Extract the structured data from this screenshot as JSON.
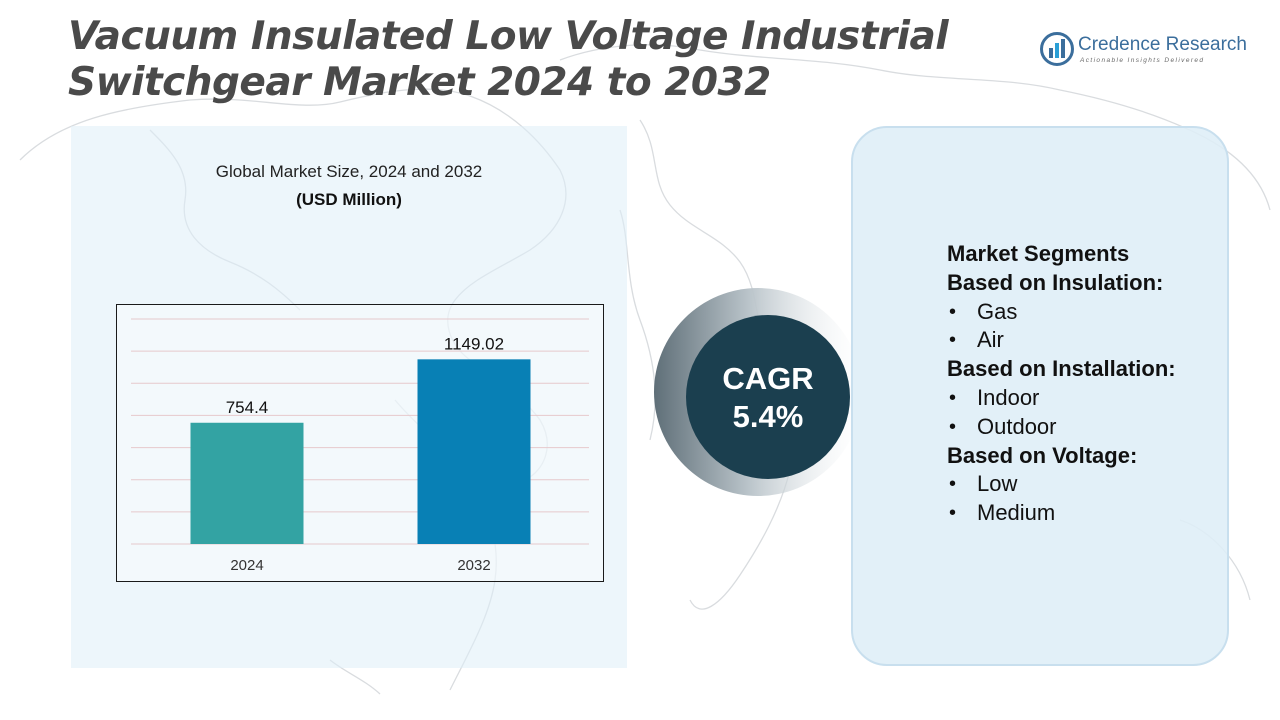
{
  "title": "Vacuum Insulated Low Voltage Industrial Switchgear Market 2024 to 2032",
  "brand": {
    "name": "Credence Research",
    "tagline": "Actionable Insights Delivered",
    "logo_icon": "bar-chart-logo-icon",
    "color": "#3b6e9c"
  },
  "chart_data": {
    "type": "bar",
    "title": "Global Market Size, 2024 and 2032",
    "subtitle": "(USD Million)",
    "categories": [
      "2024",
      "2032"
    ],
    "values": [
      754.4,
      1149.02
    ],
    "value_labels": [
      "754.4",
      "1149.02"
    ],
    "bar_colors": [
      "#33a3a3",
      "#0880b5"
    ],
    "ylim": [
      0,
      1400
    ],
    "grid": true,
    "xlabel": "",
    "ylabel": ""
  },
  "cagr": {
    "label": "CAGR",
    "value": "5.4%",
    "circle_color": "#1b3f4f"
  },
  "segments": [
    {
      "heading": "Market Segments",
      "items": []
    },
    {
      "heading": "Based on Insulation:",
      "items": [
        "Gas",
        "Air"
      ]
    },
    {
      "heading": "Based on Installation:",
      "items": [
        "Indoor",
        "Outdoor"
      ]
    },
    {
      "heading": "Based on Voltage:",
      "items": [
        "Low",
        "Medium"
      ]
    }
  ]
}
